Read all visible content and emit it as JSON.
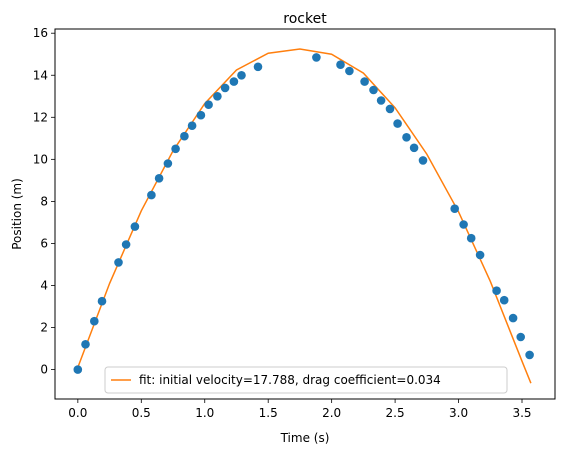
{
  "chart_data": {
    "type": "scatter",
    "title": "rocket",
    "xlabel": "Time (s)",
    "ylabel": "Position (m)",
    "xlim": [
      -0.18,
      3.76
    ],
    "ylim": [
      -1.4,
      16.2
    ],
    "xticks": [
      0.0,
      0.5,
      1.0,
      1.5,
      2.0,
      2.5,
      3.0,
      3.5
    ],
    "xtick_labels": [
      "0.0",
      "0.5",
      "1.0",
      "1.5",
      "2.0",
      "2.5",
      "3.0",
      "3.5"
    ],
    "yticks": [
      0,
      2,
      4,
      6,
      8,
      10,
      12,
      14,
      16
    ],
    "ytick_labels": [
      "0",
      "2",
      "4",
      "6",
      "8",
      "10",
      "12",
      "14",
      "16"
    ],
    "grid": false,
    "legend": {
      "placement": "bottom-center"
    },
    "colors": {
      "points": "#1f77b4",
      "fit": "#ff7f0e"
    },
    "series": [
      {
        "kind": "points",
        "x": [
          0.0,
          0.06,
          0.13,
          0.19,
          0.32,
          0.38,
          0.45,
          0.58,
          0.64,
          0.71,
          0.77,
          0.84,
          0.9,
          0.97,
          1.03,
          1.1,
          1.16,
          1.23,
          1.29,
          1.42,
          1.88,
          2.07,
          2.14,
          2.26,
          2.33,
          2.39,
          2.46,
          2.52,
          2.59,
          2.65,
          2.72,
          2.97,
          3.04,
          3.1,
          3.17,
          3.3,
          3.36,
          3.43,
          3.49,
          3.56
        ],
        "y": [
          0.0,
          1.2,
          2.3,
          3.25,
          5.1,
          5.95,
          6.8,
          8.3,
          9.1,
          9.8,
          10.5,
          11.1,
          11.6,
          12.1,
          12.6,
          13.0,
          13.4,
          13.7,
          14.0,
          14.4,
          14.85,
          14.5,
          14.2,
          13.7,
          13.3,
          12.8,
          12.4,
          11.7,
          11.05,
          10.55,
          9.95,
          7.65,
          6.9,
          6.25,
          5.45,
          3.75,
          3.3,
          2.45,
          1.55,
          0.7
        ]
      },
      {
        "kind": "line",
        "name": "fit: initial velocity=17.788, drag coefficient=0.034",
        "x": [
          0.0,
          0.25,
          0.5,
          0.75,
          1.0,
          1.25,
          1.5,
          1.75,
          2.0,
          2.25,
          2.5,
          2.75,
          3.0,
          3.25,
          3.5,
          3.57
        ],
        "y": [
          0.1,
          4.1,
          7.55,
          10.4,
          12.65,
          14.25,
          15.05,
          15.25,
          15.0,
          14.1,
          12.45,
          10.25,
          7.5,
          4.2,
          0.4,
          -0.65
        ]
      }
    ]
  }
}
